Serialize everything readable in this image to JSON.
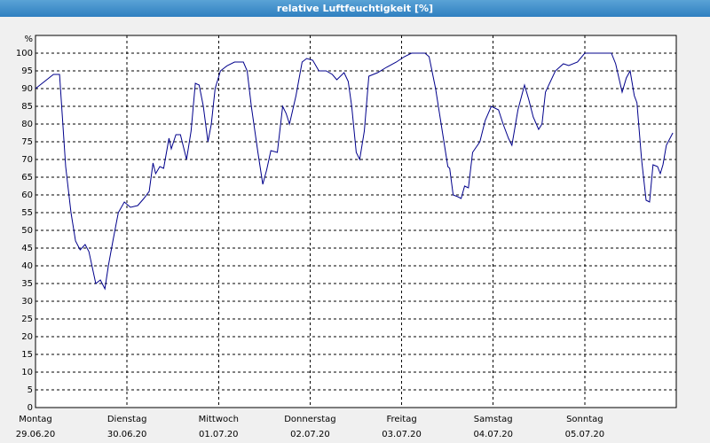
{
  "chart_data": {
    "type": "line",
    "title": "relative Luftfeuchtigkeit [%]",
    "y_unit": "%",
    "xlim": [
      0,
      168
    ],
    "xticks": [
      {
        "value": 0,
        "label": "Montag",
        "date": "29.06.20"
      },
      {
        "value": 24,
        "label": "Dienstag",
        "date": "30.06.20"
      },
      {
        "value": 48,
        "label": "Mittwoch",
        "date": "01.07.20"
      },
      {
        "value": 72,
        "label": "Donnerstag",
        "date": "02.07.20"
      },
      {
        "value": 96,
        "label": "Freitag",
        "date": "03.07.20"
      },
      {
        "value": 120,
        "label": "Samstag",
        "date": "04.07.20"
      },
      {
        "value": 144,
        "label": "Sonntag",
        "date": "05.07.20"
      }
    ],
    "ylim": [
      0,
      105
    ],
    "yticks": [
      0,
      5,
      10,
      15,
      20,
      25,
      30,
      35,
      40,
      45,
      50,
      55,
      60,
      65,
      70,
      75,
      80,
      85,
      90,
      95,
      100
    ],
    "grid": true,
    "series": [
      {
        "name": "relative Luftfeuchtigkeit",
        "color": "#00008b",
        "x": [
          0,
          4.7,
          6.3,
          7.9,
          9.3,
          10.5,
          11.7,
          13,
          14,
          15.8,
          17,
          18.2,
          19.1,
          20.3,
          21.7,
          23.3,
          24.9,
          26.8,
          28.4,
          29.8,
          30.8,
          31.5,
          32.6,
          33.6,
          35,
          35.6,
          36.8,
          38,
          39.6,
          40.8,
          41.9,
          42.9,
          44,
          45.2,
          46.1,
          47.1,
          48.5,
          50.3,
          52.2,
          54.5,
          55.5,
          56.6,
          58.3,
          59.6,
          60.6,
          61.7,
          63.4,
          64.8,
          65.7,
          66.6,
          68.3,
          69.9,
          71.1,
          72.7,
          74.3,
          76.2,
          77.8,
          79,
          80.9,
          82,
          82.9,
          84.1,
          85,
          86.2,
          87.4,
          89.7,
          92,
          94.6,
          96.7,
          98.6,
          102.1,
          103.2,
          104.9,
          106.5,
          108.1,
          108.6,
          109.5,
          110.7,
          111.6,
          112.5,
          113.5,
          114.6,
          116.5,
          117.9,
          119.5,
          121.4,
          122.6,
          124,
          124.9,
          126.5,
          128.2,
          129.3,
          130.5,
          131.9,
          132.8,
          133.7,
          136.3,
          138.4,
          139.8,
          142.1,
          144,
          146.8,
          151,
          152.1,
          153.8,
          154.9,
          155.9,
          157,
          157.7,
          158.9,
          160.1,
          161,
          161.9,
          163.1,
          163.8,
          164.5,
          165.4,
          167.1
        ],
        "values": [
          90,
          94,
          94,
          68,
          55,
          47,
          44.5,
          46,
          44,
          35,
          36,
          33.5,
          40,
          47,
          55,
          58,
          56.5,
          57,
          59,
          61,
          69,
          66,
          68,
          67.5,
          76,
          73,
          77,
          77,
          70,
          78,
          91.5,
          91,
          85,
          75,
          80,
          90,
          95,
          96.5,
          97.5,
          97.5,
          95,
          85,
          72,
          63,
          67,
          72.5,
          72,
          85,
          83,
          80,
          88,
          97.5,
          98.5,
          98,
          95,
          95,
          94,
          92.5,
          94.5,
          92,
          85,
          72,
          70,
          78,
          93.5,
          94.5,
          96,
          97.5,
          99,
          100,
          100,
          99,
          90,
          79,
          68,
          67.5,
          60,
          59.5,
          59,
          62.5,
          62,
          72,
          75,
          81,
          85,
          84,
          80,
          76,
          74,
          84,
          91,
          87,
          82,
          78.5,
          80,
          89,
          95,
          97,
          96.5,
          97.5,
          100,
          100,
          100,
          97,
          89,
          93,
          95,
          88,
          86,
          70,
          58.5,
          58,
          68.5,
          68,
          66,
          68.5,
          74,
          77.5
        ]
      }
    ]
  }
}
